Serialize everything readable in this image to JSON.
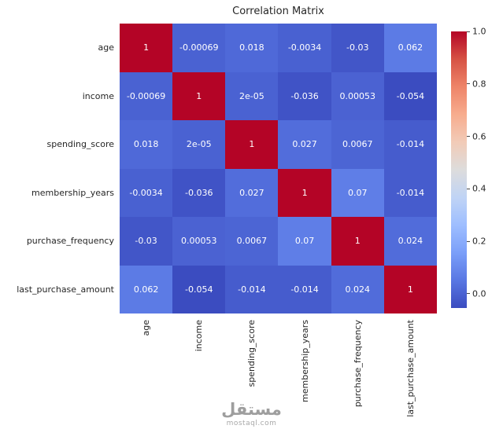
{
  "chart_data": {
    "type": "heatmap",
    "title": "Correlation Matrix",
    "categories": [
      "age",
      "income",
      "spending_score",
      "membership_years",
      "purchase_frequency",
      "last_purchase_amount"
    ],
    "matrix": [
      [
        "1",
        "-0.00069",
        "0.018",
        "-0.0034",
        "-0.03",
        "0.062"
      ],
      [
        "-0.00069",
        "1",
        "2e-05",
        "-0.036",
        "0.00053",
        "-0.054"
      ],
      [
        "0.018",
        "2e-05",
        "1",
        "0.027",
        "0.0067",
        "-0.014"
      ],
      [
        "-0.0034",
        "-0.036",
        "0.027",
        "1",
        "0.07",
        "-0.014"
      ],
      [
        "-0.03",
        "0.00053",
        "0.0067",
        "0.07",
        "1",
        "0.024"
      ],
      [
        "0.062",
        "-0.054",
        "-0.014",
        "-0.014",
        "0.024",
        "1"
      ]
    ],
    "vmin": -0.054,
    "vmax": 1.0,
    "colormap": "coolwarm",
    "colormap_colors": [
      "#3b4cc0",
      "#5977e3",
      "#7b9ff9",
      "#9ebeff",
      "#c0d4f5",
      "#dddcdc",
      "#f2cbb7",
      "#f7ac8e",
      "#ee8468",
      "#d65244",
      "#b40426"
    ],
    "colorbar_ticks": [
      "1.0",
      "0.8",
      "0.6",
      "0.4",
      "0.2",
      "0.0"
    ],
    "annotation_text_colors": {
      "light": "#ffffff",
      "dark": "#262626"
    },
    "legend_position": "right",
    "grid": false
  },
  "watermark": {
    "text": "مستقل",
    "subtext": "mostaql.com"
  }
}
